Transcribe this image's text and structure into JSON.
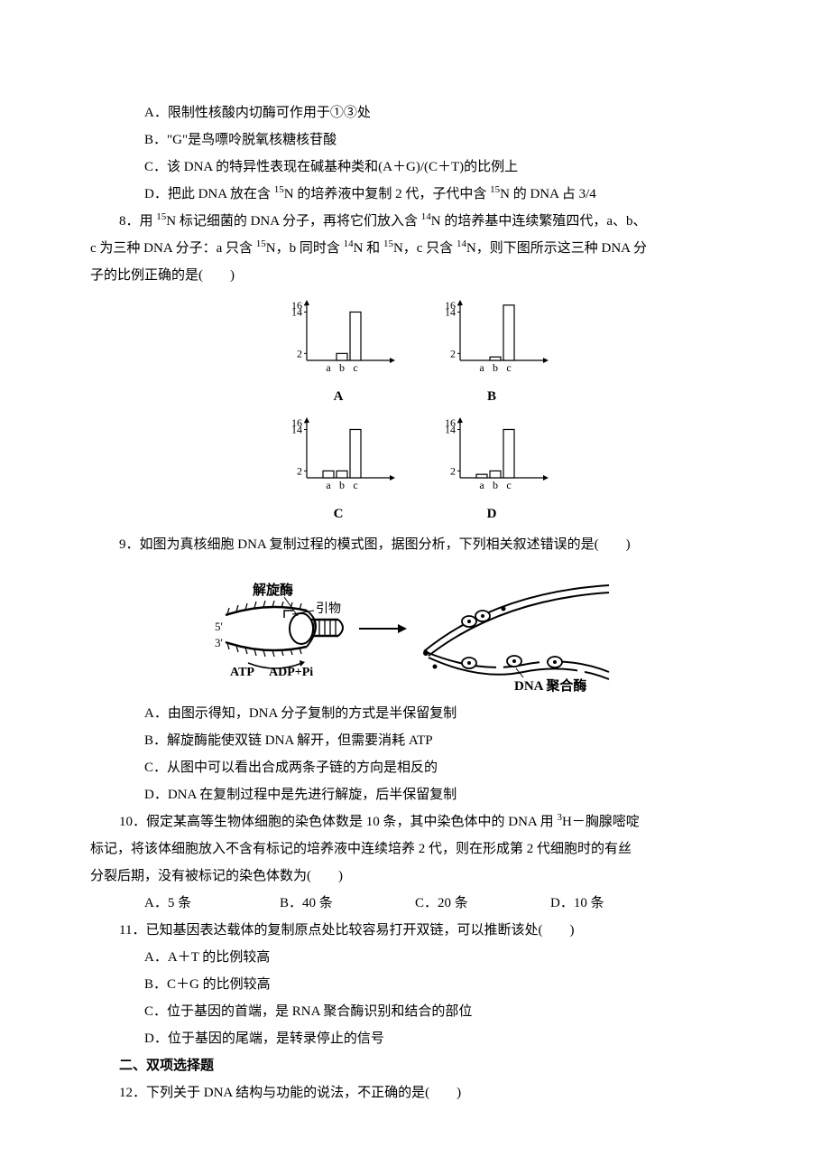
{
  "q7": {
    "A": "A．限制性核酸内切酶可作用于①③处",
    "B": "B．\"G\"是鸟嘌呤脱氧核糖核苷酸",
    "C": "C．该 DNA 的特异性表现在碱基种类和(A＋G)/(C＋T)的比例上",
    "D_pre": "D．把此 DNA 放在含 ",
    "D_sup": "15",
    "D_mid": "N 的培养液中复制 2 代，子代中含 ",
    "D_sup2": "15",
    "D_post": "N 的 DNA 占 3/4"
  },
  "q8": {
    "stem_l1_pre": "8．用 ",
    "stem_l1_s1": "15",
    "stem_l1_mid1": "N 标记细菌的 DNA 分子，再将它们放入含 ",
    "stem_l1_s2": "14",
    "stem_l1_mid2": "N 的培养基中连续繁殖四代，a、b、",
    "stem_l2_pre": "c 为三种 DNA 分子：a 只含 ",
    "stem_l2_s1": "15",
    "stem_l2_m1": "N，b 同时含 ",
    "stem_l2_s2": "14",
    "stem_l2_m2": "N 和 ",
    "stem_l2_s3": "15",
    "stem_l2_m3": "N，c 只含 ",
    "stem_l2_s4": "14",
    "stem_l2_m4": "N，则下图所示这三种 DNA 分",
    "stem_l3": "子的比例正确的是(　　)"
  },
  "charts": {
    "axis_color": "#000000",
    "bar_stroke": "#000000",
    "bar_fill": "#ffffff",
    "line_width": 1.2,
    "tick_labels_y": [
      "2",
      "14",
      "16"
    ],
    "tick_labels_x": [
      "a",
      "b",
      "c"
    ],
    "y_ticks": [
      2,
      14,
      16
    ],
    "max_y": 17,
    "A": {
      "vals": [
        0,
        2,
        14
      ],
      "label": "A"
    },
    "B": {
      "vals": [
        0,
        1,
        16
      ],
      "label": "B"
    },
    "C": {
      "vals": [
        2,
        2,
        14
      ],
      "label": "C"
    },
    "D": {
      "vals": [
        1,
        2,
        14
      ],
      "label": "D"
    }
  },
  "q9": {
    "stem": "9．如图为真核细胞 DNA 复制过程的模式图，据图分析，下列相关叙述错误的是(　　)",
    "figure": {
      "label_helicase": "解旋酶",
      "label_primer": "引物",
      "label_53a": "5'",
      "label_53b": "3'",
      "label_atp": "ATP",
      "label_adp": "ADP+Pi",
      "label_polymerase": "DNA 聚合酶",
      "stroke_color": "#000000",
      "arrow_color": "#000000",
      "bg": "#ffffff"
    },
    "A": "A．由图示得知，DNA 分子复制的方式是半保留复制",
    "B": "B．解旋酶能使双链 DNA 解开，但需要消耗 ATP",
    "C": "C．从图中可以看出合成两条子链的方向是相反的",
    "D": "D．DNA 在复制过程中是先进行解旋，后半保留复制"
  },
  "q10": {
    "stem_l1_pre": "10．假定某高等生物体细胞的染色体数是 10 条，其中染色体中的 DNA 用 ",
    "stem_l1_sup": "3",
    "stem_l1_post": "H－胸腺嘧啶",
    "stem_l2": "标记，将该体细胞放入不含有标记的培养液中连续培养 2 代，则在形成第 2 代细胞时的有丝",
    "stem_l3": "分裂后期，没有被标记的染色体数为(　　)",
    "A": "A．5 条",
    "B": "B．40 条",
    "C": "C．20 条",
    "D": "D．10 条"
  },
  "q11": {
    "stem": "11．已知基因表达载体的复制原点处比较容易打开双链，可以推断该处(　　)",
    "A": "A．A＋T 的比例较高",
    "B": "B．C＋G 的比例较高",
    "C": "C．位于基因的首端，是 RNA 聚合酶识别和结合的部位",
    "D": "D．位于基因的尾端，是转录停止的信号"
  },
  "section2": "二、双项选择题",
  "q12": {
    "stem": "12．下列关于 DNA 结构与功能的说法，不正确的是(　　)"
  }
}
